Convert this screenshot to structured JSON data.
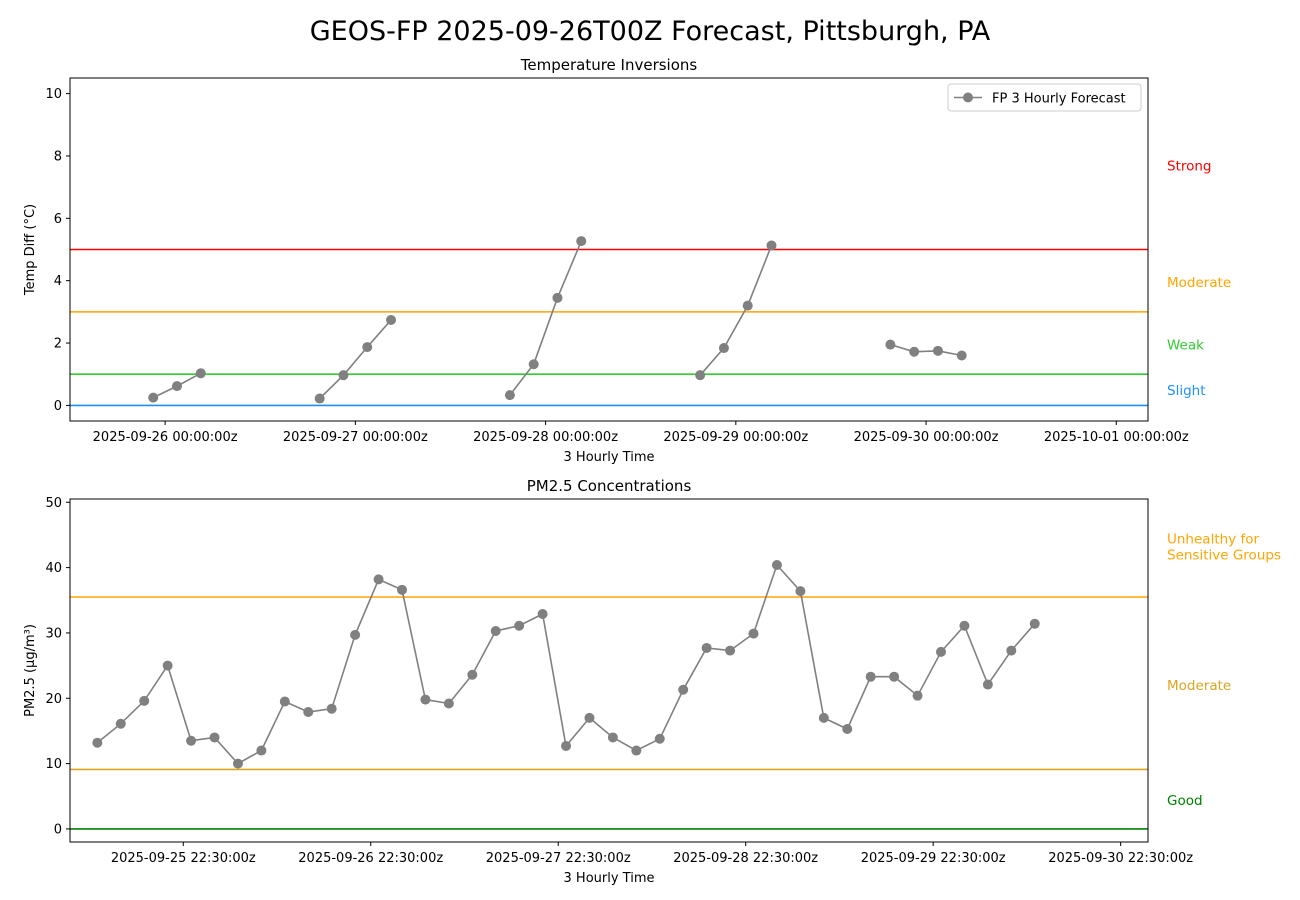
{
  "figure_title": "GEOS-FP 2025-09-26T00Z Forecast, Pittsburgh, PA",
  "chart_data": [
    {
      "type": "line",
      "title": "Temperature Inversions",
      "xlabel": "3 Hourly Time",
      "ylabel": "Temp Diff (°C)",
      "ylim": [
        -0.5,
        10.5
      ],
      "yticks": [
        0,
        2,
        4,
        6,
        8,
        10
      ],
      "xlim_hours": [
        -12,
        124
      ],
      "xticks": [
        {
          "hours": 0,
          "label": "2025-09-26 00:00:00z"
        },
        {
          "hours": 24,
          "label": "2025-09-27 00:00:00z"
        },
        {
          "hours": 48,
          "label": "2025-09-28 00:00:00z"
        },
        {
          "hours": 72,
          "label": "2025-09-29 00:00:00z"
        },
        {
          "hours": 96,
          "label": "2025-09-30 00:00:00z"
        },
        {
          "hours": 120,
          "label": "2025-10-01 00:00:00z"
        }
      ],
      "legend": {
        "label": "FP 3 Hourly Forecast",
        "position": "top-right"
      },
      "series": [
        {
          "color": "#808080",
          "segments": [
            [
              [
                -1.5,
                0.25
              ],
              [
                1.5,
                0.62
              ],
              [
                4.5,
                1.03
              ]
            ],
            [
              [
                19.5,
                0.22
              ],
              [
                22.5,
                0.97
              ],
              [
                25.5,
                1.87
              ],
              [
                28.5,
                2.74
              ]
            ],
            [
              [
                43.5,
                0.33
              ],
              [
                46.5,
                1.32
              ],
              [
                49.5,
                3.45
              ],
              [
                52.5,
                5.27
              ]
            ],
            [
              [
                67.5,
                0.97
              ],
              [
                70.5,
                1.84
              ],
              [
                73.5,
                3.2
              ],
              [
                76.5,
                5.13
              ]
            ],
            [
              [
                91.5,
                1.95
              ],
              [
                94.5,
                1.72
              ],
              [
                97.5,
                1.75
              ],
              [
                100.5,
                1.6
              ]
            ]
          ]
        }
      ],
      "thresholds": [
        {
          "value": 0,
          "color": "#1f8fff"
        },
        {
          "value": 1,
          "color": "#32cd32"
        },
        {
          "value": 3,
          "color": "#ffa500"
        },
        {
          "value": 5,
          "color": "#ff0000"
        }
      ],
      "side_labels": [
        {
          "text": "Strong",
          "y": 7.7,
          "color": "#ff0000"
        },
        {
          "text": "Moderate",
          "y": 3.95,
          "color": "#ffa500"
        },
        {
          "text": "Weak",
          "y": 1.95,
          "color": "#32cd32"
        },
        {
          "text": "Slight",
          "y": 0.5,
          "color": "#1f8fff"
        }
      ]
    },
    {
      "type": "line",
      "title": "PM2.5 Concentrations",
      "xlabel": "3 Hourly Time",
      "ylabel": "PM2.5 (μg/m³)",
      "ylim": [
        -2,
        50.5
      ],
      "yticks": [
        0,
        10,
        20,
        30,
        40,
        50
      ],
      "xlim_hours": [
        -14.5,
        123.5
      ],
      "xticks": [
        {
          "hours": 0,
          "label": "2025-09-25 22:30:00z"
        },
        {
          "hours": 24,
          "label": "2025-09-26 22:30:00z"
        },
        {
          "hours": 48,
          "label": "2025-09-27 22:30:00z"
        },
        {
          "hours": 72,
          "label": "2025-09-28 22:30:00z"
        },
        {
          "hours": 96,
          "label": "2025-09-29 22:30:00z"
        },
        {
          "hours": 120,
          "label": "2025-09-30 22:30:00z"
        }
      ],
      "series": [
        {
          "color": "#808080",
          "segments": [
            [
              [
                -11,
                13.2
              ],
              [
                -8,
                16.1
              ],
              [
                -5,
                19.6
              ],
              [
                -2,
                25.0
              ],
              [
                1,
                13.5
              ],
              [
                4,
                14.0
              ],
              [
                7,
                10.0
              ],
              [
                10,
                12.0
              ],
              [
                13,
                19.5
              ],
              [
                16,
                17.9
              ],
              [
                19,
                18.4
              ],
              [
                22,
                29.7
              ],
              [
                25,
                38.2
              ],
              [
                28,
                36.6
              ],
              [
                31,
                19.8
              ],
              [
                34,
                19.2
              ],
              [
                37,
                23.6
              ],
              [
                40,
                30.3
              ],
              [
                43,
                31.1
              ],
              [
                46,
                32.9
              ],
              [
                49,
                12.7
              ],
              [
                52,
                17.0
              ],
              [
                55,
                14.0
              ],
              [
                58,
                12.0
              ],
              [
                61,
                13.8
              ],
              [
                64,
                21.3
              ],
              [
                67,
                27.7
              ],
              [
                70,
                27.3
              ],
              [
                73,
                29.9
              ],
              [
                76,
                40.4
              ],
              [
                79,
                36.4
              ],
              [
                82,
                17.0
              ],
              [
                85,
                15.3
              ],
              [
                88,
                23.3
              ],
              [
                91,
                23.3
              ],
              [
                94,
                20.4
              ],
              [
                97,
                27.1
              ],
              [
                100,
                31.1
              ],
              [
                103,
                22.1
              ],
              [
                106,
                27.3
              ],
              [
                109,
                31.4
              ]
            ]
          ]
        }
      ],
      "thresholds": [
        {
          "value": 0,
          "color": "#008000"
        },
        {
          "value": 9.1,
          "color": "#daa520"
        },
        {
          "value": 35.5,
          "color": "#ffa500"
        }
      ],
      "side_labels": [
        {
          "text": "Unhealthy for\nSensitive Groups",
          "y": 43.2,
          "color": "#ffa500"
        },
        {
          "text": "Moderate",
          "y": 22.0,
          "color": "#daa520"
        },
        {
          "text": "Good",
          "y": 4.4,
          "color": "#008000"
        }
      ]
    }
  ]
}
